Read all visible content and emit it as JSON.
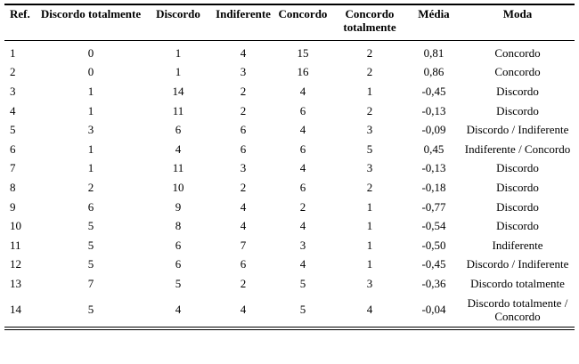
{
  "table": {
    "columns": [
      "Ref.",
      "Discordo totalmente",
      "Discordo",
      "Indiferente",
      "Concordo",
      "Concordo totalmente",
      "Média",
      "Moda"
    ],
    "rows": [
      [
        "1",
        "0",
        "1",
        "4",
        "15",
        "2",
        "0,81",
        "Concordo"
      ],
      [
        "2",
        "0",
        "1",
        "3",
        "16",
        "2",
        "0,86",
        "Concordo"
      ],
      [
        "3",
        "1",
        "14",
        "2",
        "4",
        "1",
        "-0,45",
        "Discordo"
      ],
      [
        "4",
        "1",
        "11",
        "2",
        "6",
        "2",
        "-0,13",
        "Discordo"
      ],
      [
        "5",
        "3",
        "6",
        "6",
        "4",
        "3",
        "-0,09",
        "Discordo / Indiferente"
      ],
      [
        "6",
        "1",
        "4",
        "6",
        "6",
        "5",
        "0,45",
        "Indiferente / Concordo"
      ],
      [
        "7",
        "1",
        "11",
        "3",
        "4",
        "3",
        "-0,13",
        "Discordo"
      ],
      [
        "8",
        "2",
        "10",
        "2",
        "6",
        "2",
        "-0,18",
        "Discordo"
      ],
      [
        "9",
        "6",
        "9",
        "4",
        "2",
        "1",
        "-0,77",
        "Discordo"
      ],
      [
        "10",
        "5",
        "8",
        "4",
        "4",
        "1",
        "-0,54",
        "Discordo"
      ],
      [
        "11",
        "5",
        "6",
        "7",
        "3",
        "1",
        "-0,50",
        "Indiferente"
      ],
      [
        "12",
        "5",
        "6",
        "6",
        "4",
        "1",
        "-0,45",
        "Discordo / Indiferente"
      ],
      [
        "13",
        "7",
        "5",
        "2",
        "5",
        "3",
        "-0,36",
        "Discordo totalmente"
      ],
      [
        "14",
        "5",
        "4",
        "4",
        "5",
        "4",
        "-0,04",
        "Discordo totalmente / Concordo"
      ]
    ]
  }
}
